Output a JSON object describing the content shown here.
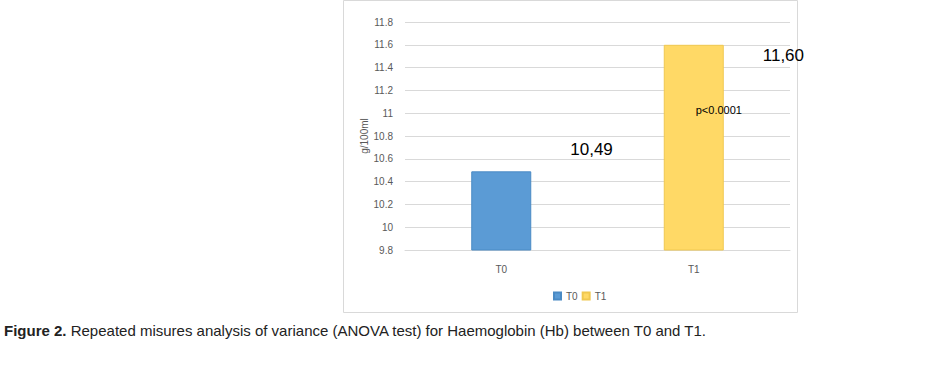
{
  "chart_data": {
    "type": "bar",
    "categories": [
      "T0",
      "T1"
    ],
    "series": [
      {
        "name": "T0",
        "color": "#5B9BD5",
        "values": [
          10.49,
          null
        ],
        "value_labels": [
          "10,49",
          null
        ]
      },
      {
        "name": "T1",
        "color": "#FFD966",
        "values": [
          null,
          11.6
        ],
        "value_labels": [
          null,
          "11,60"
        ]
      }
    ],
    "y_label": "g/100ml",
    "annotation": "p<0.0001",
    "ylim": [
      9.8,
      11.8
    ],
    "yticks": [
      9.8,
      10,
      10.2,
      10.4,
      10.6,
      10.8,
      11,
      11.2,
      11.4,
      11.6,
      11.8
    ],
    "grid": true,
    "legend": "bottom",
    "data_labels": true,
    "caption": {
      "label": "Figure 2.",
      "text": "Repeated misures analysis of variance (ANOVA test) for Haemoglobin (Hb) between T0 and T1."
    }
  }
}
